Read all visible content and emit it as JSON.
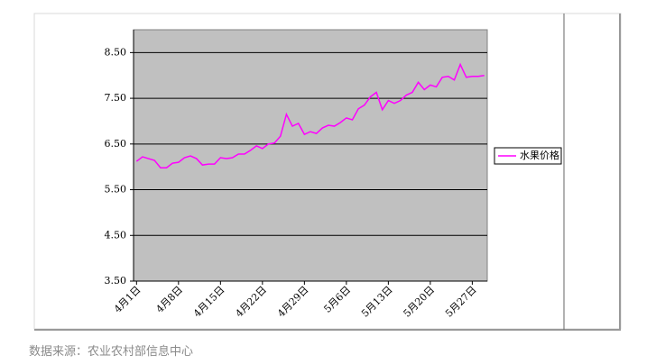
{
  "chart_data": {
    "type": "line",
    "categories": [
      "4月1日",
      null,
      null,
      null,
      null,
      null,
      null,
      "4月8日",
      null,
      null,
      null,
      null,
      null,
      null,
      "4月15日",
      null,
      null,
      null,
      null,
      null,
      null,
      "4月22日",
      null,
      null,
      null,
      null,
      null,
      null,
      "4月29日",
      null,
      null,
      null,
      null,
      null,
      null,
      "5月6日",
      null,
      null,
      null,
      null,
      null,
      null,
      "5月13日",
      null,
      null,
      null,
      null,
      null,
      null,
      "5月20日",
      null,
      null,
      null,
      null,
      null,
      null,
      "5月27日",
      null,
      null
    ],
    "series": [
      {
        "name": "水果价格",
        "color": "#ff00ff",
        "values": [
          6.12,
          6.22,
          6.18,
          6.14,
          5.98,
          5.98,
          6.08,
          6.1,
          6.2,
          6.24,
          6.18,
          6.04,
          6.06,
          6.06,
          6.2,
          6.18,
          6.2,
          6.28,
          6.28,
          6.36,
          6.46,
          6.4,
          6.5,
          6.52,
          6.67,
          7.15,
          6.89,
          6.95,
          6.71,
          6.77,
          6.73,
          6.85,
          6.91,
          6.89,
          6.97,
          7.07,
          7.03,
          7.27,
          7.35,
          7.53,
          7.63,
          7.25,
          7.45,
          7.39,
          7.45,
          7.57,
          7.63,
          7.85,
          7.69,
          7.79,
          7.75,
          7.96,
          7.98,
          7.9,
          8.24,
          7.96,
          7.98,
          7.98,
          8.0
        ]
      }
    ],
    "ylim": [
      3.5,
      9.0
    ],
    "yticks": [
      {
        "value": 3.5,
        "label": "3.50"
      },
      {
        "value": 4.5,
        "label": "4.50"
      },
      {
        "value": 5.5,
        "label": "5.50"
      },
      {
        "value": 6.5,
        "label": "6.50"
      },
      {
        "value": 7.5,
        "label": "7.50"
      },
      {
        "value": 8.5,
        "label": "8.50"
      }
    ],
    "grid": true,
    "legend": "right",
    "plot_background": "#c0c0c0"
  },
  "caption": "数据来源：农业农村部信息中心"
}
